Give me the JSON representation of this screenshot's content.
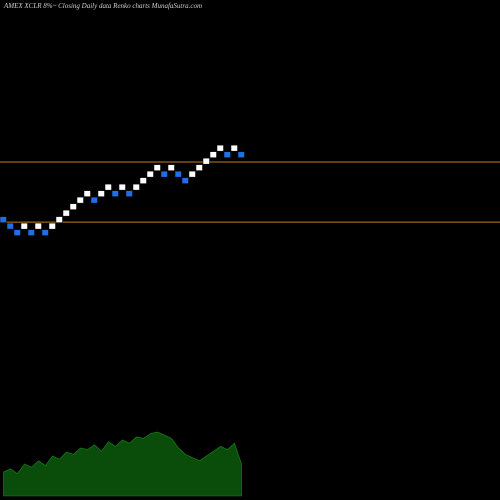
{
  "chart_data": {
    "type": "renko",
    "title": "AMEX  XCLR 8%~   Closing Daily data  Renko  charts MunafaSutra.com",
    "values": [
      2,
      1,
      0,
      1,
      0,
      1,
      0,
      1,
      2,
      3,
      4,
      5,
      6,
      5,
      6,
      7,
      6,
      7,
      6,
      7,
      8,
      9,
      10,
      9,
      10,
      9,
      8,
      9,
      10,
      11,
      12,
      13,
      12,
      13,
      12
    ],
    "directions": [
      "down",
      "down",
      "down",
      "up",
      "down",
      "up",
      "down",
      "up",
      "up",
      "up",
      "up",
      "up",
      "up",
      "down",
      "up",
      "up",
      "down",
      "up",
      "down",
      "up",
      "up",
      "up",
      "up",
      "down",
      "up",
      "down",
      "down",
      "up",
      "up",
      "up",
      "up",
      "up",
      "down",
      "up",
      "down"
    ],
    "up_color": "#ffffff",
    "down_color": "#1f6fe6",
    "ylim": [
      -40,
      34.8
    ],
    "lines": [
      2.15,
      11.4
    ],
    "line_color": "#c87a1e",
    "volumes": [
      30,
      34,
      28,
      40,
      36,
      44,
      38,
      50,
      46,
      55,
      52,
      60,
      58,
      64,
      56,
      68,
      62,
      70,
      66,
      74,
      72,
      78,
      80,
      76,
      72,
      60,
      52,
      48,
      44,
      50,
      56,
      62,
      58,
      66,
      40
    ],
    "volume_color": "#0a4d0a",
    "vlim": [
      0,
      100
    ]
  }
}
